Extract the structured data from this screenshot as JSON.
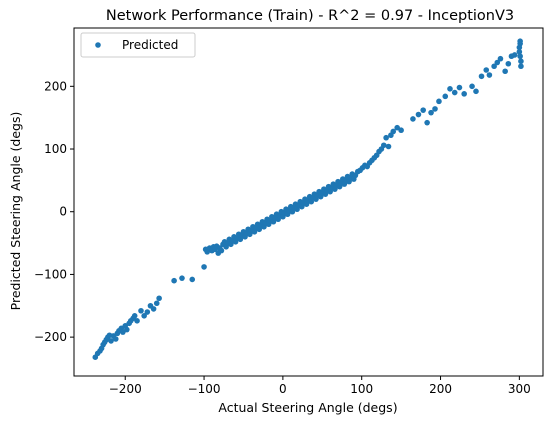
{
  "chart_data": {
    "type": "scatter",
    "title": "Network Performance (Train) - R^2 = 0.97 - InceptionV3",
    "xlabel": "Actual Steering Angle (degs)",
    "ylabel": "Predicted Steering Angle (degs)",
    "xlim": [
      -265,
      330
    ],
    "ylim": [
      -262,
      293
    ],
    "xticks": [
      -200,
      -100,
      0,
      100,
      200,
      300
    ],
    "yticks": [
      -200,
      -100,
      0,
      100,
      200
    ],
    "grid": false,
    "legend_position": "top-left",
    "marker_color": "#1f77b4",
    "series": [
      {
        "name": "Predicted",
        "points": [
          [
            -238,
            -232
          ],
          [
            -235,
            -226
          ],
          [
            -232,
            -222
          ],
          [
            -230,
            -218
          ],
          [
            -228,
            -212
          ],
          [
            -226,
            -208
          ],
          [
            -224,
            -204
          ],
          [
            -222,
            -200
          ],
          [
            -220,
            -197
          ],
          [
            -218,
            -206
          ],
          [
            -215,
            -198
          ],
          [
            -212,
            -203
          ],
          [
            -210,
            -194
          ],
          [
            -208,
            -190
          ],
          [
            -205,
            -186
          ],
          [
            -203,
            -192
          ],
          [
            -200,
            -182
          ],
          [
            -198,
            -188
          ],
          [
            -195,
            -178
          ],
          [
            -193,
            -174
          ],
          [
            -190,
            -170
          ],
          [
            -188,
            -166
          ],
          [
            -185,
            -174
          ],
          [
            -180,
            -158
          ],
          [
            -176,
            -166
          ],
          [
            -172,
            -160
          ],
          [
            -168,
            -150
          ],
          [
            -164,
            -155
          ],
          [
            -160,
            -146
          ],
          [
            -157,
            -138
          ],
          [
            -138,
            -110
          ],
          [
            -128,
            -106
          ],
          [
            -115,
            -108
          ],
          [
            -100,
            -88
          ],
          [
            -98,
            -60
          ],
          [
            -96,
            -64
          ],
          [
            -93,
            -58
          ],
          [
            -90,
            -62
          ],
          [
            -88,
            -56
          ],
          [
            -86,
            -60
          ],
          [
            -84,
            -55
          ],
          [
            -82,
            -66
          ],
          [
            -80,
            -58
          ],
          [
            -78,
            -62
          ],
          [
            -76,
            -52
          ],
          [
            -74,
            -48
          ],
          [
            -72,
            -56
          ],
          [
            -70,
            -50
          ],
          [
            -68,
            -44
          ],
          [
            -66,
            -52
          ],
          [
            -64,
            -46
          ],
          [
            -62,
            -40
          ],
          [
            -60,
            -48
          ],
          [
            -58,
            -42
          ],
          [
            -56,
            -36
          ],
          [
            -54,
            -44
          ],
          [
            -52,
            -38
          ],
          [
            -50,
            -32
          ],
          [
            -48,
            -40
          ],
          [
            -46,
            -34
          ],
          [
            -44,
            -28
          ],
          [
            -42,
            -36
          ],
          [
            -40,
            -30
          ],
          [
            -38,
            -24
          ],
          [
            -36,
            -32
          ],
          [
            -34,
            -26
          ],
          [
            -32,
            -20
          ],
          [
            -30,
            -28
          ],
          [
            -28,
            -22
          ],
          [
            -26,
            -16
          ],
          [
            -24,
            -24
          ],
          [
            -22,
            -18
          ],
          [
            -20,
            -12
          ],
          [
            -18,
            -20
          ],
          [
            -16,
            -14
          ],
          [
            -14,
            -8
          ],
          [
            -12,
            -16
          ],
          [
            -10,
            -10
          ],
          [
            -8,
            -4
          ],
          [
            -6,
            -12
          ],
          [
            -4,
            -6
          ],
          [
            -2,
            0
          ],
          [
            0,
            -8
          ],
          [
            2,
            -2
          ],
          [
            4,
            4
          ],
          [
            6,
            -4
          ],
          [
            8,
            2
          ],
          [
            10,
            8
          ],
          [
            12,
            0
          ],
          [
            14,
            6
          ],
          [
            16,
            12
          ],
          [
            18,
            4
          ],
          [
            20,
            10
          ],
          [
            22,
            16
          ],
          [
            24,
            8
          ],
          [
            26,
            14
          ],
          [
            28,
            20
          ],
          [
            30,
            12
          ],
          [
            32,
            18
          ],
          [
            34,
            24
          ],
          [
            36,
            16
          ],
          [
            38,
            22
          ],
          [
            40,
            28
          ],
          [
            42,
            20
          ],
          [
            44,
            26
          ],
          [
            46,
            32
          ],
          [
            48,
            24
          ],
          [
            50,
            30
          ],
          [
            52,
            36
          ],
          [
            54,
            28
          ],
          [
            56,
            34
          ],
          [
            58,
            40
          ],
          [
            60,
            32
          ],
          [
            62,
            38
          ],
          [
            64,
            44
          ],
          [
            66,
            36
          ],
          [
            68,
            42
          ],
          [
            70,
            48
          ],
          [
            72,
            40
          ],
          [
            74,
            46
          ],
          [
            76,
            52
          ],
          [
            78,
            44
          ],
          [
            80,
            50
          ],
          [
            82,
            56
          ],
          [
            84,
            48
          ],
          [
            86,
            54
          ],
          [
            88,
            60
          ],
          [
            90,
            52
          ],
          [
            92,
            58
          ],
          [
            95,
            64
          ],
          [
            98,
            66
          ],
          [
            101,
            70
          ],
          [
            104,
            74
          ],
          [
            107,
            72
          ],
          [
            110,
            78
          ],
          [
            113,
            82
          ],
          [
            116,
            86
          ],
          [
            119,
            90
          ],
          [
            122,
            96
          ],
          [
            125,
            100
          ],
          [
            128,
            106
          ],
          [
            131,
            118
          ],
          [
            134,
            104
          ],
          [
            137,
            122
          ],
          [
            140,
            128
          ],
          [
            145,
            134
          ],
          [
            150,
            130
          ],
          [
            165,
            148
          ],
          [
            172,
            155
          ],
          [
            178,
            162
          ],
          [
            183,
            142
          ],
          [
            188,
            158
          ],
          [
            193,
            164
          ],
          [
            198,
            176
          ],
          [
            206,
            184
          ],
          [
            212,
            196
          ],
          [
            218,
            190
          ],
          [
            224,
            198
          ],
          [
            230,
            188
          ],
          [
            240,
            200
          ],
          [
            245,
            192
          ],
          [
            252,
            216
          ],
          [
            258,
            226
          ],
          [
            262,
            218
          ],
          [
            268,
            232
          ],
          [
            272,
            238
          ],
          [
            276,
            244
          ],
          [
            282,
            224
          ],
          [
            286,
            236
          ],
          [
            290,
            248
          ],
          [
            294,
            250
          ],
          [
            300,
            255
          ],
          [
            300,
            262
          ],
          [
            301,
            268
          ],
          [
            301,
            248
          ],
          [
            302,
            240
          ],
          [
            302,
            232
          ],
          [
            301,
            272
          ]
        ]
      }
    ]
  }
}
